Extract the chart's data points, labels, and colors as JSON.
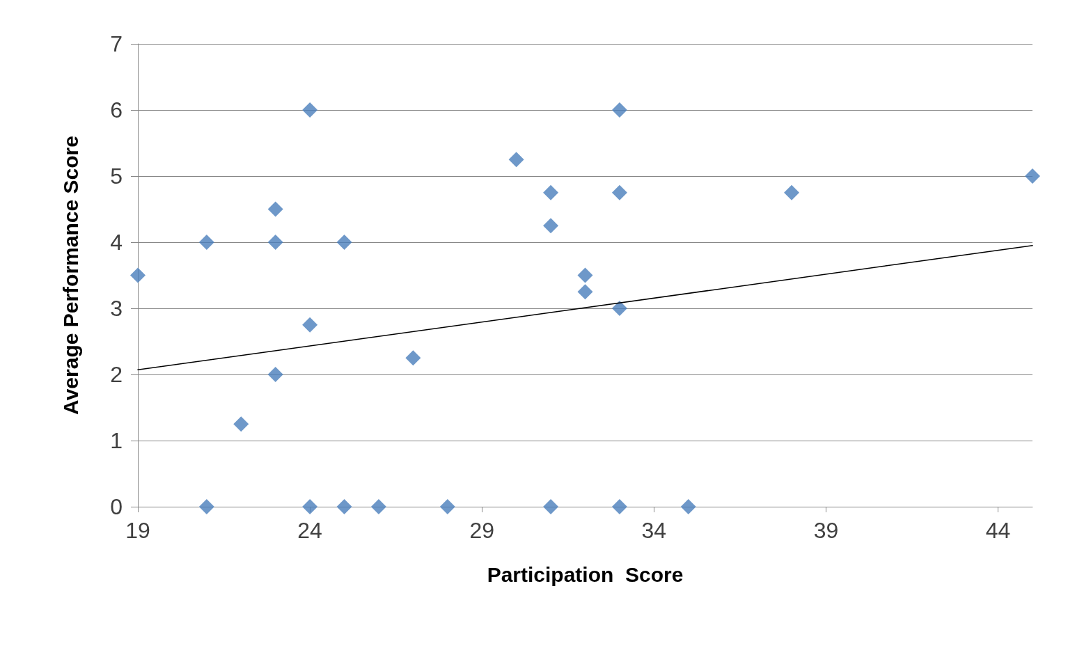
{
  "chart_data": {
    "type": "scatter",
    "xlabel": "Participation  Score",
    "ylabel": "Average Performance Score",
    "xlim": [
      19,
      45
    ],
    "xticks": [
      19,
      24,
      29,
      34,
      39,
      44
    ],
    "ylim": [
      0,
      7
    ],
    "yticks": [
      0,
      1,
      2,
      3,
      4,
      5,
      6,
      7
    ],
    "grid": "y",
    "marker": "diamond",
    "series": [
      {
        "color": "#4a7ebb",
        "x": [
          19,
          21,
          21,
          22,
          23,
          23,
          23,
          24,
          24,
          24,
          25,
          25,
          26,
          27,
          28,
          30,
          31,
          31,
          31,
          32,
          32,
          33,
          33,
          33,
          33,
          35,
          38,
          45
        ],
        "values": [
          3.5,
          4,
          0,
          1.25,
          4.5,
          4,
          2,
          6,
          2.75,
          0,
          4,
          0,
          0,
          2.25,
          0,
          5.25,
          4.75,
          4.25,
          0,
          3.5,
          3.25,
          6,
          4.75,
          3,
          0,
          0,
          4.75,
          5
        ]
      },
      {
        "type": "line",
        "color": "#000000",
        "marker": "none",
        "line_style": "solid",
        "x": [
          19,
          45
        ],
        "values": [
          2.07,
          3.95
        ]
      }
    ]
  }
}
